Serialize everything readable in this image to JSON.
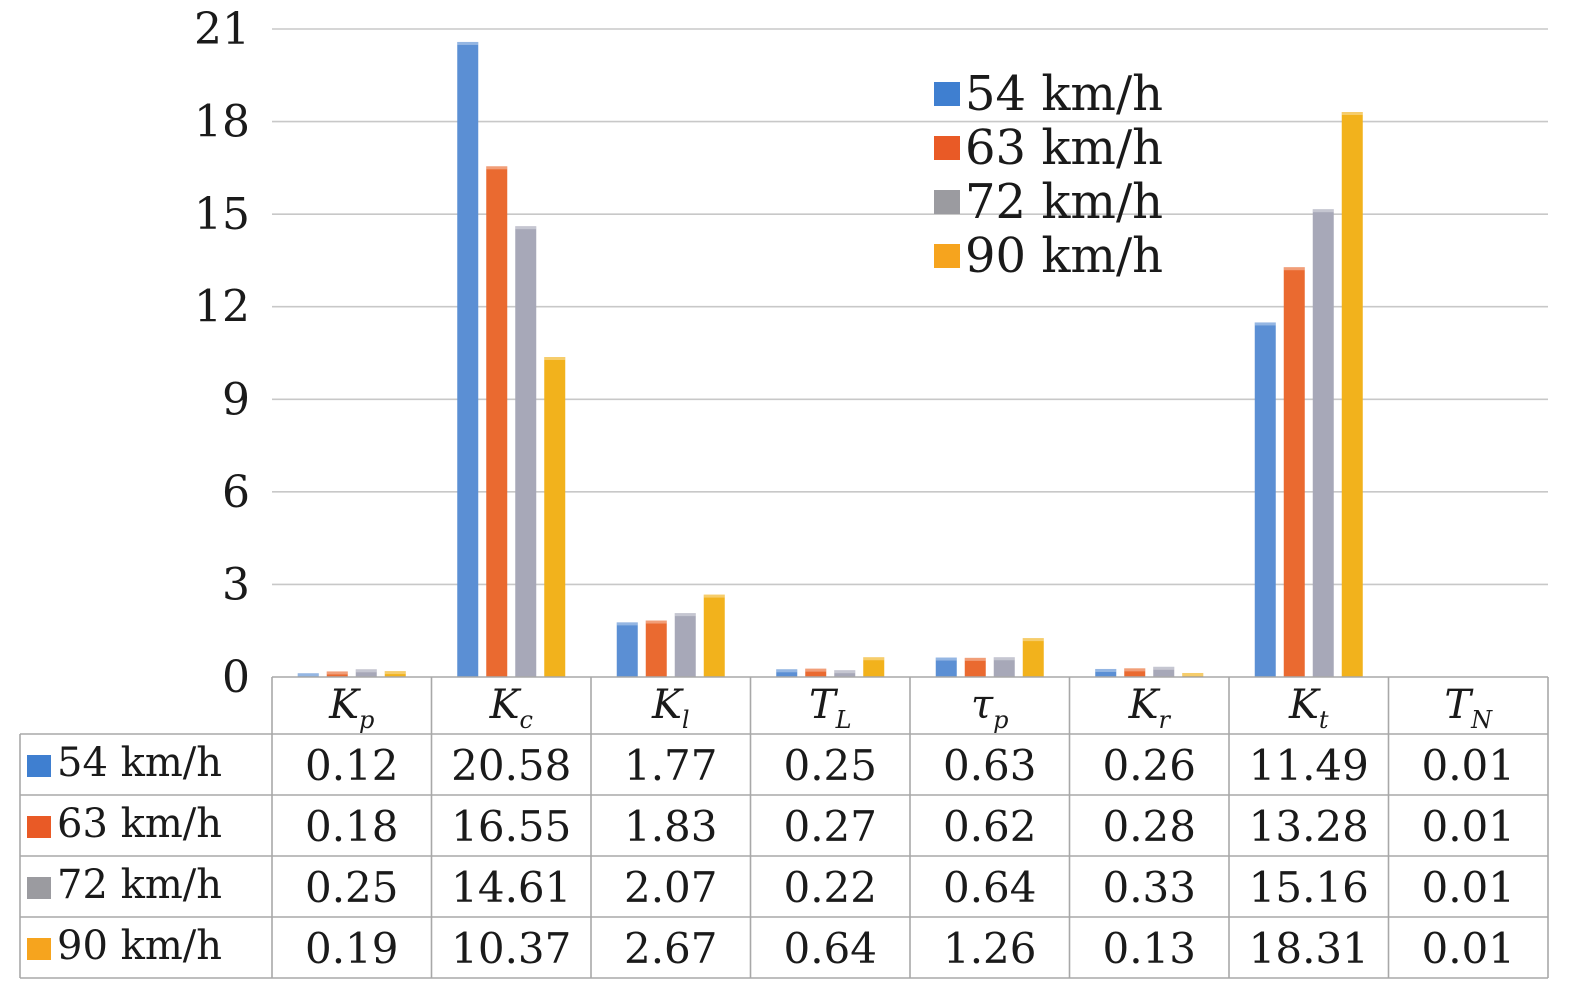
{
  "chart_data": {
    "type": "bar",
    "categories": [
      {
        "main": "K",
        "sub": "p"
      },
      {
        "main": "K",
        "sub": "c"
      },
      {
        "main": "K",
        "sub": "l"
      },
      {
        "main": "T",
        "sub": "L"
      },
      {
        "main": "τ",
        "sub": "p"
      },
      {
        "main": "K",
        "sub": "r"
      },
      {
        "main": "K",
        "sub": "t"
      },
      {
        "main": "T",
        "sub": "N"
      }
    ],
    "series": [
      {
        "name": "54 km/h",
        "color": "#5b8fd4",
        "values": [
          0.12,
          20.58,
          1.77,
          0.25,
          0.63,
          0.26,
          11.49,
          0.01
        ],
        "labels": [
          "0.12",
          "20.58",
          "1.77",
          "0.25",
          "0.63",
          "0.26",
          "11.49",
          "0.01"
        ]
      },
      {
        "name": "63 km/h",
        "color": "#ea6a30",
        "values": [
          0.18,
          16.55,
          1.83,
          0.27,
          0.62,
          0.28,
          13.28,
          0.01
        ],
        "labels": [
          "0.18",
          "16.55",
          "1.83",
          "0.27",
          "0.62",
          "0.28",
          "13.28",
          "0.01"
        ]
      },
      {
        "name": "72 km/h",
        "color": "#a7a8b8",
        "values": [
          0.25,
          14.61,
          2.07,
          0.22,
          0.64,
          0.33,
          15.16,
          0.01
        ],
        "labels": [
          "0.25",
          "14.61",
          "2.07",
          "0.22",
          "0.64",
          "0.33",
          "15.16",
          "0.01"
        ]
      },
      {
        "name": "90 km/h",
        "color": "#f2b21c",
        "values": [
          0.19,
          10.37,
          2.67,
          0.64,
          1.26,
          0.13,
          18.31,
          0.01
        ],
        "labels": [
          "0.19",
          "10.37",
          "2.67",
          "0.64",
          "1.26",
          "0.13",
          "18.31",
          "0.01"
        ]
      }
    ],
    "legend_swatch_colors": [
      "#3f7fd0",
      "#e95a26",
      "#9b9ba0",
      "#f6a41e"
    ],
    "ylim": [
      0,
      21
    ],
    "yticks": [
      "0",
      "3",
      "6",
      "9",
      "12",
      "15",
      "18",
      "21"
    ],
    "grid": true,
    "legend_position": "top-right",
    "data_table": true,
    "gridline_color": "#c8c8c8",
    "table_border_color": "#a8a8a8"
  }
}
